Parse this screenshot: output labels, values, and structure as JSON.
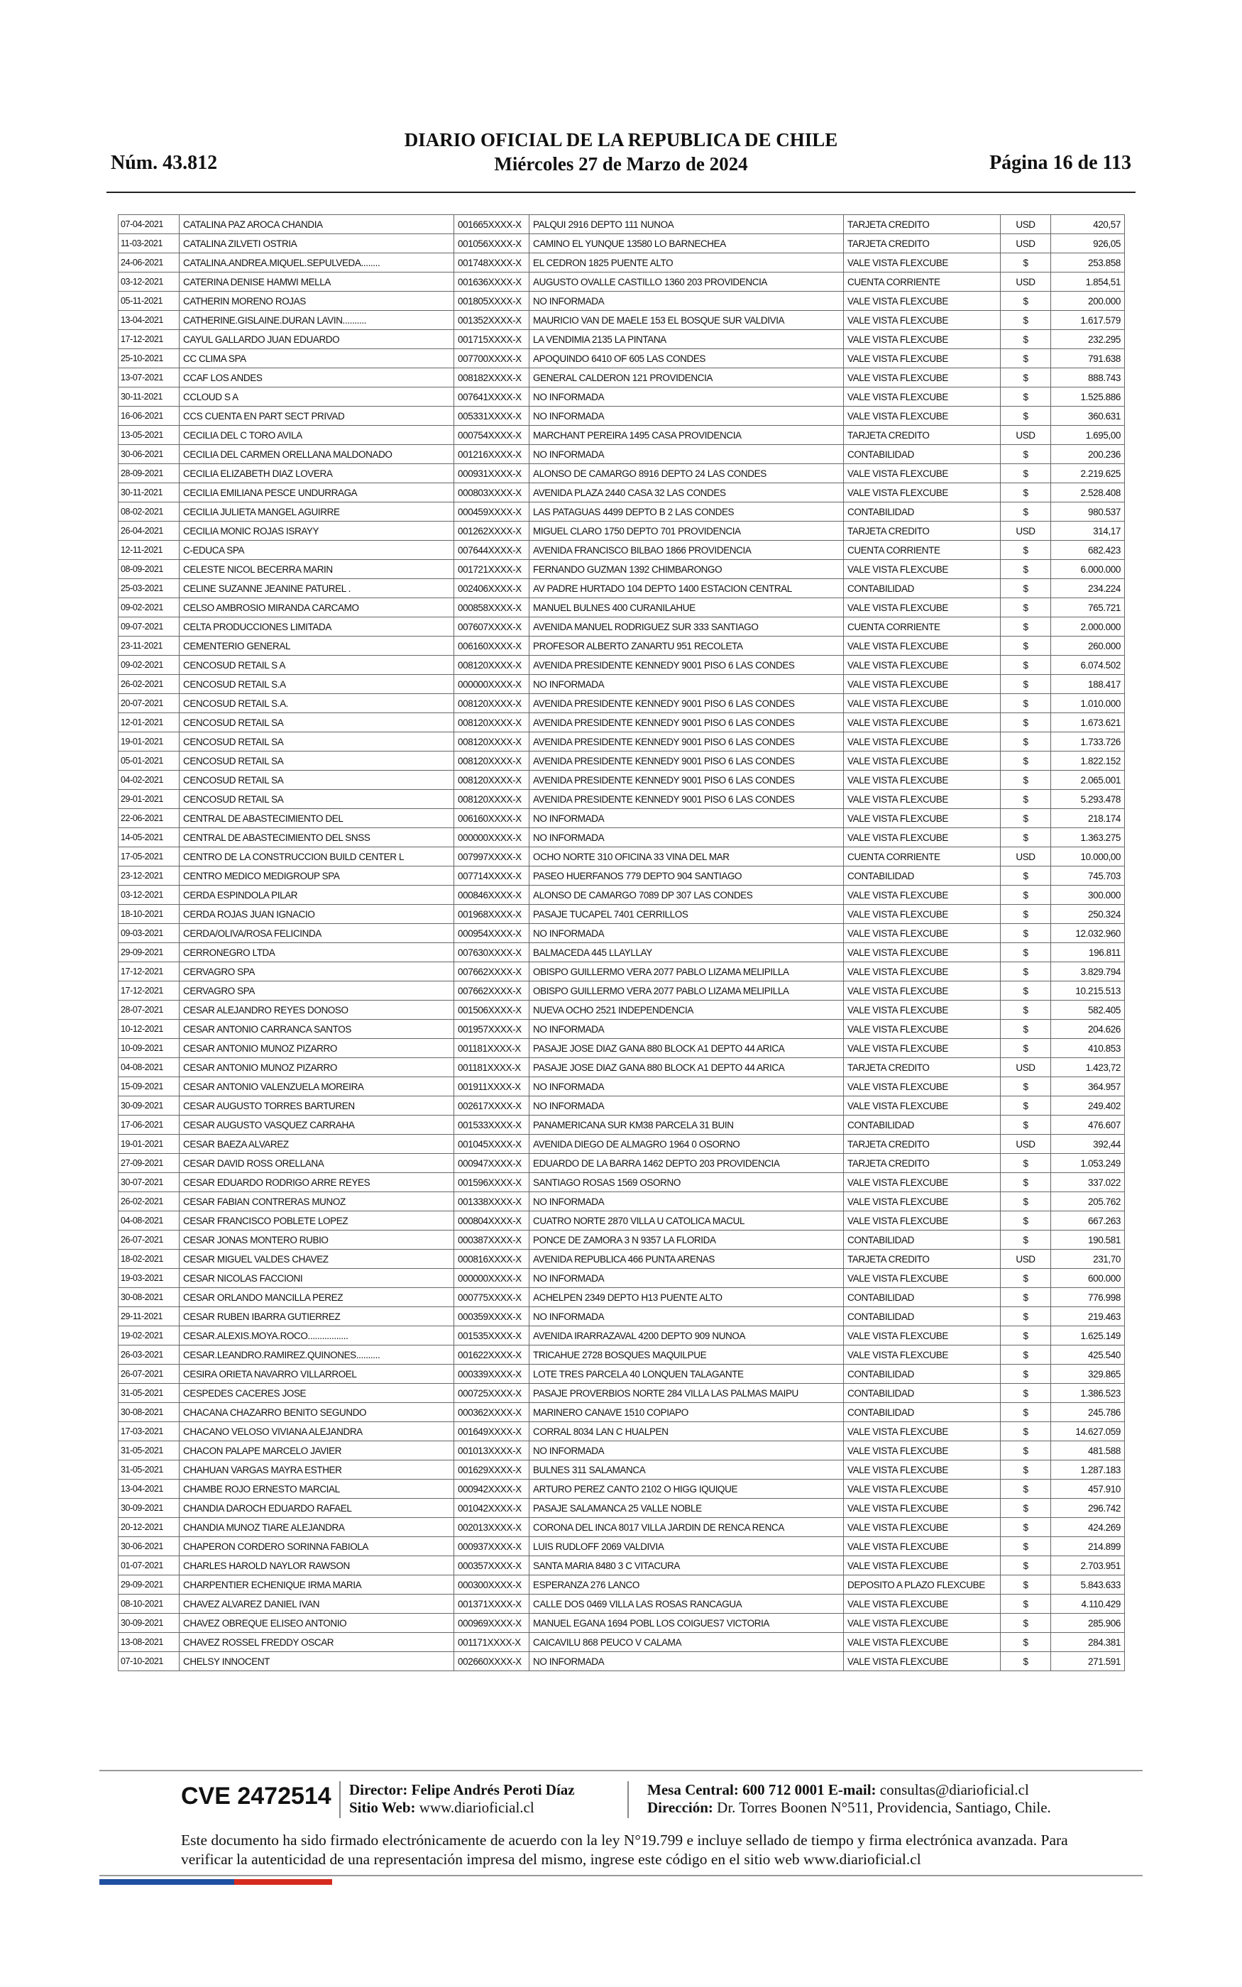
{
  "header": {
    "number": "Núm. 43.812",
    "title": "DIARIO OFICIAL DE LA REPUBLICA DE CHILE",
    "date": "Miércoles 27 de Marzo de 2024",
    "page": "Página 16 de 113"
  },
  "table": {
    "rows": [
      [
        "07-04-2021",
        "CATALINA PAZ AROCA CHANDIA",
        "001665XXXX-X",
        "PALQUI 2916 DEPTO 111 NUNOA",
        "TARJETA CREDITO",
        "USD",
        "420,57"
      ],
      [
        "11-03-2021",
        "CATALINA ZILVETI OSTRIA",
        "001056XXXX-X",
        "CAMINO EL YUNQUE 13580 LO BARNECHEA",
        "TARJETA CREDITO",
        "USD",
        "926,05"
      ],
      [
        "24-06-2021",
        "CATALINA.ANDREA.MIQUEL.SEPULVEDA........",
        "001748XXXX-X",
        "EL CEDRON 1825 PUENTE ALTO",
        "VALE VISTA FLEXCUBE",
        "$",
        "253.858"
      ],
      [
        "03-12-2021",
        "CATERINA DENISE HAMWI MELLA",
        "001636XXXX-X",
        "AUGUSTO OVALLE CASTILLO 1360 203 PROVIDENCIA",
        "CUENTA CORRIENTE",
        "USD",
        "1.854,51"
      ],
      [
        "05-11-2021",
        "CATHERIN MORENO ROJAS",
        "001805XXXX-X",
        "NO INFORMADA",
        "VALE VISTA FLEXCUBE",
        "$",
        "200.000"
      ],
      [
        "13-04-2021",
        "CATHERINE.GISLAINE.DURAN LAVIN..........",
        "001352XXXX-X",
        "MAURICIO VAN DE MAELE 153 EL BOSQUE SUR VALDIVIA",
        "VALE VISTA FLEXCUBE",
        "$",
        "1.617.579"
      ],
      [
        "17-12-2021",
        "CAYUL GALLARDO JUAN EDUARDO",
        "001715XXXX-X",
        "LA VENDIMIA 2135 LA PINTANA",
        "VALE VISTA FLEXCUBE",
        "$",
        "232.295"
      ],
      [
        "25-10-2021",
        "CC CLIMA SPA",
        "007700XXXX-X",
        "APOQUINDO 6410 OF 605 LAS CONDES",
        "VALE VISTA FLEXCUBE",
        "$",
        "791.638"
      ],
      [
        "13-07-2021",
        "CCAF LOS ANDES",
        "008182XXXX-X",
        "GENERAL CALDERON 121 PROVIDENCIA",
        "VALE VISTA FLEXCUBE",
        "$",
        "888.743"
      ],
      [
        "30-11-2021",
        "CCLOUD S A",
        "007641XXXX-X",
        "NO INFORMADA",
        "VALE VISTA FLEXCUBE",
        "$",
        "1.525.886"
      ],
      [
        "16-06-2021",
        "CCS CUENTA EN PART SECT PRIVAD",
        "005331XXXX-X",
        "NO INFORMADA",
        "VALE VISTA FLEXCUBE",
        "$",
        "360.631"
      ],
      [
        "13-05-2021",
        "CECILIA DEL C TORO AVILA",
        "000754XXXX-X",
        "MARCHANT PEREIRA 1495 CASA PROVIDENCIA",
        "TARJETA CREDITO",
        "USD",
        "1.695,00"
      ],
      [
        "30-06-2021",
        "CECILIA DEL CARMEN ORELLANA MALDONADO",
        "001216XXXX-X",
        "NO INFORMADA",
        "CONTABILIDAD",
        "$",
        "200.236"
      ],
      [
        "28-09-2021",
        "CECILIA ELIZABETH DIAZ LOVERA",
        "000931XXXX-X",
        "ALONSO DE CAMARGO 8916 DEPTO 24 LAS CONDES",
        "VALE VISTA FLEXCUBE",
        "$",
        "2.219.625"
      ],
      [
        "30-11-2021",
        "CECILIA EMILIANA PESCE UNDURRAGA",
        "000803XXXX-X",
        "AVENIDA PLAZA 2440 CASA 32 LAS CONDES",
        "VALE VISTA FLEXCUBE",
        "$",
        "2.528.408"
      ],
      [
        "08-02-2021",
        "CECILIA JULIETA MANGEL AGUIRRE",
        "000459XXXX-X",
        "LAS PATAGUAS 4499 DEPTO B 2 LAS CONDES",
        "CONTABILIDAD",
        "$",
        "980.537"
      ],
      [
        "26-04-2021",
        "CECILIA MONIC ROJAS ISRAYY",
        "001262XXXX-X",
        "MIGUEL CLARO 1750 DEPTO 701 PROVIDENCIA",
        "TARJETA CREDITO",
        "USD",
        "314,17"
      ],
      [
        "12-11-2021",
        "C-EDUCA SPA",
        "007644XXXX-X",
        "AVENIDA FRANCISCO BILBAO 1866 PROVIDENCIA",
        "CUENTA CORRIENTE",
        "$",
        "682.423"
      ],
      [
        "08-09-2021",
        "CELESTE NICOL BECERRA MARIN",
        "001721XXXX-X",
        "FERNANDO GUZMAN 1392 CHIMBARONGO",
        "VALE VISTA FLEXCUBE",
        "$",
        "6.000.000"
      ],
      [
        "25-03-2021",
        "CELINE SUZANNE JEANINE PATUREL .",
        "002406XXXX-X",
        "AV PADRE HURTADO 104 DEPTO 1400 ESTACION CENTRAL",
        "CONTABILIDAD",
        "$",
        "234.224"
      ],
      [
        "09-02-2021",
        "CELSO AMBROSIO MIRANDA CARCAMO",
        "000858XXXX-X",
        "MANUEL BULNES 400 CURANILAHUE",
        "VALE VISTA FLEXCUBE",
        "$",
        "765.721"
      ],
      [
        "09-07-2021",
        "CELTA PRODUCCIONES LIMITADA",
        "007607XXXX-X",
        "AVENIDA MANUEL RODRIGUEZ SUR 333 SANTIAGO",
        "CUENTA CORRIENTE",
        "$",
        "2.000.000"
      ],
      [
        "23-11-2021",
        "CEMENTERIO GENERAL",
        "006160XXXX-X",
        "PROFESOR ALBERTO ZANARTU 951 RECOLETA",
        "VALE VISTA FLEXCUBE",
        "$",
        "260.000"
      ],
      [
        "09-02-2021",
        "CENCOSUD RETAIL S A",
        "008120XXXX-X",
        "AVENIDA PRESIDENTE KENNEDY 9001 PISO 6 LAS CONDES",
        "VALE VISTA FLEXCUBE",
        "$",
        "6.074.502"
      ],
      [
        "26-02-2021",
        "CENCOSUD RETAIL S.A",
        "000000XXXX-X",
        "NO INFORMADA",
        "VALE VISTA FLEXCUBE",
        "$",
        "188.417"
      ],
      [
        "20-07-2021",
        "CENCOSUD RETAIL S.A.",
        "008120XXXX-X",
        "AVENIDA PRESIDENTE KENNEDY 9001 PISO 6 LAS CONDES",
        "VALE VISTA FLEXCUBE",
        "$",
        "1.010.000"
      ],
      [
        "12-01-2021",
        "CENCOSUD RETAIL SA",
        "008120XXXX-X",
        "AVENIDA PRESIDENTE KENNEDY 9001 PISO 6 LAS CONDES",
        "VALE VISTA FLEXCUBE",
        "$",
        "1.673.621"
      ],
      [
        "19-01-2021",
        "CENCOSUD RETAIL SA",
        "008120XXXX-X",
        "AVENIDA PRESIDENTE KENNEDY 9001 PISO 6 LAS CONDES",
        "VALE VISTA FLEXCUBE",
        "$",
        "1.733.726"
      ],
      [
        "05-01-2021",
        "CENCOSUD RETAIL SA",
        "008120XXXX-X",
        "AVENIDA PRESIDENTE KENNEDY 9001 PISO 6 LAS CONDES",
        "VALE VISTA FLEXCUBE",
        "$",
        "1.822.152"
      ],
      [
        "04-02-2021",
        "CENCOSUD RETAIL SA",
        "008120XXXX-X",
        "AVENIDA PRESIDENTE KENNEDY 9001 PISO 6 LAS CONDES",
        "VALE VISTA FLEXCUBE",
        "$",
        "2.065.001"
      ],
      [
        "29-01-2021",
        "CENCOSUD RETAIL SA",
        "008120XXXX-X",
        "AVENIDA PRESIDENTE KENNEDY 9001 PISO 6 LAS CONDES",
        "VALE VISTA FLEXCUBE",
        "$",
        "5.293.478"
      ],
      [
        "22-06-2021",
        "CENTRAL DE ABASTECIMIENTO DEL",
        "006160XXXX-X",
        "NO INFORMADA",
        "VALE VISTA FLEXCUBE",
        "$",
        "218.174"
      ],
      [
        "14-05-2021",
        "CENTRAL DE ABASTECIMIENTO DEL SNSS",
        "000000XXXX-X",
        "NO INFORMADA",
        "VALE VISTA FLEXCUBE",
        "$",
        "1.363.275"
      ],
      [
        "17-05-2021",
        "CENTRO DE LA CONSTRUCCION BUILD CENTER L",
        "007997XXXX-X",
        "OCHO NORTE 310 OFICINA 33 VINA DEL MAR",
        "CUENTA CORRIENTE",
        "USD",
        "10.000,00"
      ],
      [
        "23-12-2021",
        "CENTRO MEDICO MEDIGROUP SPA",
        "007714XXXX-X",
        "PASEO HUERFANOS 779 DEPTO 904 SANTIAGO",
        "CONTABILIDAD",
        "$",
        "745.703"
      ],
      [
        "03-12-2021",
        "CERDA ESPINDOLA PILAR",
        "000846XXXX-X",
        "ALONSO DE CAMARGO 7089 DP 307 LAS CONDES",
        "VALE VISTA FLEXCUBE",
        "$",
        "300.000"
      ],
      [
        "18-10-2021",
        "CERDA ROJAS JUAN IGNACIO",
        "001968XXXX-X",
        "PASAJE TUCAPEL 7401 CERRILLOS",
        "VALE VISTA FLEXCUBE",
        "$",
        "250.324"
      ],
      [
        "09-03-2021",
        "CERDA/OLIVA/ROSA FELICINDA",
        "000954XXXX-X",
        "NO INFORMADA",
        "VALE VISTA FLEXCUBE",
        "$",
        "12.032.960"
      ],
      [
        "29-09-2021",
        "CERRONEGRO LTDA",
        "007630XXXX-X",
        "BALMACEDA 445 LLAYLLAY",
        "VALE VISTA FLEXCUBE",
        "$",
        "196.811"
      ],
      [
        "17-12-2021",
        "CERVAGRO SPA",
        "007662XXXX-X",
        "OBISPO GUILLERMO VERA 2077 PABLO LIZAMA MELIPILLA",
        "VALE VISTA FLEXCUBE",
        "$",
        "3.829.794"
      ],
      [
        "17-12-2021",
        "CERVAGRO SPA",
        "007662XXXX-X",
        "OBISPO GUILLERMO VERA 2077 PABLO LIZAMA MELIPILLA",
        "VALE VISTA FLEXCUBE",
        "$",
        "10.215.513"
      ],
      [
        "28-07-2021",
        "CESAR ALEJANDRO REYES DONOSO",
        "001506XXXX-X",
        "NUEVA OCHO 2521 INDEPENDENCIA",
        "VALE VISTA FLEXCUBE",
        "$",
        "582.405"
      ],
      [
        "10-12-2021",
        "CESAR ANTONIO CARRANCA SANTOS",
        "001957XXXX-X",
        "NO INFORMADA",
        "VALE VISTA FLEXCUBE",
        "$",
        "204.626"
      ],
      [
        "10-09-2021",
        "CESAR ANTONIO MUNOZ PIZARRO",
        "001181XXXX-X",
        "PASAJE JOSE DIAZ GANA 880 BLOCK A1 DEPTO 44 ARICA",
        "VALE VISTA FLEXCUBE",
        "$",
        "410.853"
      ],
      [
        "04-08-2021",
        "CESAR ANTONIO MUNOZ PIZARRO",
        "001181XXXX-X",
        "PASAJE JOSE DIAZ GANA 880 BLOCK A1 DEPTO 44 ARICA",
        "TARJETA CREDITO",
        "USD",
        "1.423,72"
      ],
      [
        "15-09-2021",
        "CESAR ANTONIO VALENZUELA MOREIRA",
        "001911XXXX-X",
        "NO INFORMADA",
        "VALE VISTA FLEXCUBE",
        "$",
        "364.957"
      ],
      [
        "30-09-2021",
        "CESAR AUGUSTO TORRES BARTUREN",
        "002617XXXX-X",
        "NO INFORMADA",
        "VALE VISTA FLEXCUBE",
        "$",
        "249.402"
      ],
      [
        "17-06-2021",
        "CESAR AUGUSTO VASQUEZ CARRAHA",
        "001533XXXX-X",
        "PANAMERICANA SUR KM38 PARCELA 31 BUIN",
        "CONTABILIDAD",
        "$",
        "476.607"
      ],
      [
        "19-01-2021",
        "CESAR BAEZA ALVAREZ",
        "001045XXXX-X",
        "AVENIDA DIEGO DE ALMAGRO 1964 0 OSORNO",
        "TARJETA CREDITO",
        "USD",
        "392,44"
      ],
      [
        "27-09-2021",
        "CESAR DAVID ROSS ORELLANA",
        "000947XXXX-X",
        "EDUARDO DE LA BARRA 1462 DEPTO 203 PROVIDENCIA",
        "TARJETA CREDITO",
        "$",
        "1.053.249"
      ],
      [
        "30-07-2021",
        "CESAR EDUARDO RODRIGO ARRE REYES",
        "001596XXXX-X",
        "SANTIAGO ROSAS 1569 OSORNO",
        "VALE VISTA FLEXCUBE",
        "$",
        "337.022"
      ],
      [
        "26-02-2021",
        "CESAR FABIAN CONTRERAS MUNOZ",
        "001338XXXX-X",
        "NO INFORMADA",
        "VALE VISTA FLEXCUBE",
        "$",
        "205.762"
      ],
      [
        "04-08-2021",
        "CESAR FRANCISCO POBLETE LOPEZ",
        "000804XXXX-X",
        "CUATRO NORTE 2870 VILLA U CATOLICA MACUL",
        "VALE VISTA FLEXCUBE",
        "$",
        "667.263"
      ],
      [
        "26-07-2021",
        "CESAR JONAS MONTERO RUBIO",
        "000387XXXX-X",
        "PONCE DE ZAMORA 3 N 9357 LA FLORIDA",
        "CONTABILIDAD",
        "$",
        "190.581"
      ],
      [
        "18-02-2021",
        "CESAR MIGUEL VALDES CHAVEZ",
        "000816XXXX-X",
        "AVENIDA REPUBLICA 466 PUNTA ARENAS",
        "TARJETA CREDITO",
        "USD",
        "231,70"
      ],
      [
        "19-03-2021",
        "CESAR NICOLAS FACCIONI",
        "000000XXXX-X",
        "NO INFORMADA",
        "VALE VISTA FLEXCUBE",
        "$",
        "600.000"
      ],
      [
        "30-08-2021",
        "CESAR ORLANDO MANCILLA PEREZ",
        "000775XXXX-X",
        "ACHELPEN 2349 DEPTO H13 PUENTE ALTO",
        "CONTABILIDAD",
        "$",
        "776.998"
      ],
      [
        "29-11-2021",
        "CESAR RUBEN IBARRA GUTIERREZ",
        "000359XXXX-X",
        "NO INFORMADA",
        "CONTABILIDAD",
        "$",
        "219.463"
      ],
      [
        "19-02-2021",
        "CESAR.ALEXIS.MOYA.ROCO.................",
        "001535XXXX-X",
        "AVENIDA IRARRAZAVAL 4200 DEPTO 909 NUNOA",
        "VALE VISTA FLEXCUBE",
        "$",
        "1.625.149"
      ],
      [
        "26-03-2021",
        "CESAR.LEANDRO.RAMIREZ.QUINONES..........",
        "001622XXXX-X",
        "TRICAHUE 2728 BOSQUES MAQUILPUE",
        "VALE VISTA FLEXCUBE",
        "$",
        "425.540"
      ],
      [
        "26-07-2021",
        "CESIRA ORIETA NAVARRO VILLARROEL",
        "000339XXXX-X",
        "LOTE TRES PARCELA 40 LONQUEN TALAGANTE",
        "CONTABILIDAD",
        "$",
        "329.865"
      ],
      [
        "31-05-2021",
        "CESPEDES CACERES JOSE",
        "000725XXXX-X",
        "PASAJE PROVERBIOS NORTE 284 VILLA LAS PALMAS MAIPU",
        "CONTABILIDAD",
        "$",
        "1.386.523"
      ],
      [
        "30-08-2021",
        "CHACANA CHAZARRO BENITO SEGUNDO",
        "000362XXXX-X",
        "MARINERO CANAVE 1510 COPIAPO",
        "CONTABILIDAD",
        "$",
        "245.786"
      ],
      [
        "17-03-2021",
        "CHACANO VELOSO VIVIANA ALEJANDRA",
        "001649XXXX-X",
        "CORRAL 8034 LAN C HUALPEN",
        "VALE VISTA FLEXCUBE",
        "$",
        "14.627.059"
      ],
      [
        "31-05-2021",
        "CHACON PALAPE MARCELO JAVIER",
        "001013XXXX-X",
        "NO INFORMADA",
        "VALE VISTA FLEXCUBE",
        "$",
        "481.588"
      ],
      [
        "31-05-2021",
        "CHAHUAN VARGAS MAYRA ESTHER",
        "001629XXXX-X",
        "BULNES 311 SALAMANCA",
        "VALE VISTA FLEXCUBE",
        "$",
        "1.287.183"
      ],
      [
        "13-04-2021",
        "CHAMBE ROJO ERNESTO MARCIAL",
        "000942XXXX-X",
        "ARTURO PEREZ CANTO 2102 O HIGG IQUIQUE",
        "VALE VISTA FLEXCUBE",
        "$",
        "457.910"
      ],
      [
        "30-09-2021",
        "CHANDIA DAROCH EDUARDO RAFAEL",
        "001042XXXX-X",
        "PASAJE SALAMANCA 25 VALLE NOBLE",
        "VALE VISTA FLEXCUBE",
        "$",
        "296.742"
      ],
      [
        "20-12-2021",
        "CHANDIA MUNOZ TIARE ALEJANDRA",
        "002013XXXX-X",
        "CORONA DEL INCA 8017 VILLA JARDIN DE RENCA RENCA",
        "VALE VISTA FLEXCUBE",
        "$",
        "424.269"
      ],
      [
        "30-06-2021",
        "CHAPERON CORDERO SORINNA FABIOLA",
        "000937XXXX-X",
        "LUIS RUDLOFF 2069 VALDIVIA",
        "VALE VISTA FLEXCUBE",
        "$",
        "214.899"
      ],
      [
        "01-07-2021",
        "CHARLES HAROLD NAYLOR RAWSON",
        "000357XXXX-X",
        "SANTA MARIA 8480 3 C VITACURA",
        "VALE VISTA FLEXCUBE",
        "$",
        "2.703.951"
      ],
      [
        "29-09-2021",
        "CHARPENTIER ECHENIQUE IRMA MARIA",
        "000300XXXX-X",
        "ESPERANZA 276 LANCO",
        "DEPOSITO A PLAZO FLEXCUBE",
        "$",
        "5.843.633"
      ],
      [
        "08-10-2021",
        "CHAVEZ ALVAREZ DANIEL IVAN",
        "001371XXXX-X",
        "CALLE DOS 0469 VILLA LAS ROSAS RANCAGUA",
        "VALE VISTA FLEXCUBE",
        "$",
        "4.110.429"
      ],
      [
        "30-09-2021",
        "CHAVEZ OBREQUE ELISEO ANTONIO",
        "000969XXXX-X",
        "MANUEL EGANA 1694 POBL LOS COIGUES7 VICTORIA",
        "VALE VISTA FLEXCUBE",
        "$",
        "285.906"
      ],
      [
        "13-08-2021",
        "CHAVEZ ROSSEL FREDDY OSCAR",
        "001171XXXX-X",
        "CAICAVILU 868 PEUCO V CALAMA",
        "VALE VISTA FLEXCUBE",
        "$",
        "284.381"
      ],
      [
        "07-10-2021",
        "CHELSY INNOCENT",
        "002660XXXX-X",
        "NO INFORMADA",
        "VALE VISTA FLEXCUBE",
        "$",
        "271.591"
      ]
    ]
  },
  "footer": {
    "cve": "CVE 2472514",
    "director": "Director: Felipe Andrés Peroti Díaz",
    "web_label": "Sitio Web:",
    "web": "www.diarioficial.cl",
    "phone": "Mesa Central: 600 712 0001",
    "email_label": "E-mail:",
    "email": "consultas@diarioficial.cl",
    "address_label": "Dirección:",
    "address": "Dr. Torres Boonen N°511, Providencia, Santiago, Chile.",
    "legal": "Este documento ha sido firmado electrónicamente de acuerdo con la ley N°19.799 e incluye sellado de tiempo y firma electrónica avanzada. Para verificar la autenticidad de una representación impresa del mismo, ingrese este código en el sitio web www.diarioficial.cl"
  }
}
